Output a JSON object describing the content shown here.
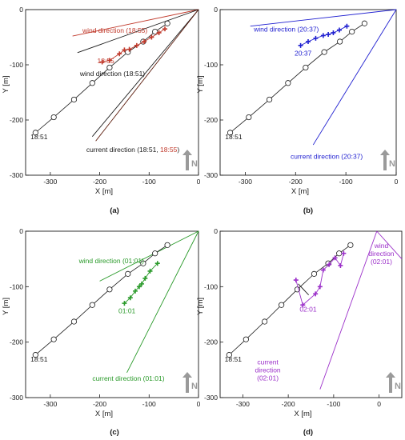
{
  "figure": {
    "xlabel": "X [m]",
    "ylabel": "Y [m]",
    "xticks": [
      -300,
      -200,
      -100,
      0
    ],
    "yticks": [
      0,
      -100,
      -200,
      -300
    ],
    "north_symbol": "N"
  },
  "colors": {
    "black": "#1a1a1a",
    "red": "#c0392b",
    "dark_red": "#5a1a0a",
    "blue": "#1f1fd0",
    "green": "#2a9a2a",
    "purple": "#9b2fc9",
    "north_arrow": "#9a9a9a"
  },
  "icons": {
    "north_arrow": "north-arrow-icon"
  },
  "chart_data": [
    {
      "type": "scatter",
      "panel_label": "(a)",
      "xlim": [
        -350,
        0
      ],
      "ylim": [
        -300,
        0
      ],
      "grid": false,
      "series": [
        {
          "name": "",
          "color": "black",
          "marker": "circle",
          "x": [
            -330,
            -293,
            -252,
            -215,
            -180,
            -143,
            -112,
            -88,
            -63
          ],
          "y": [
            -223,
            -195,
            -163,
            -133,
            -105,
            -77,
            -58,
            -40,
            -25
          ]
        },
        {
          "name": "",
          "color": "red",
          "marker": "plus",
          "x": [
            -195,
            -180,
            -160,
            -150,
            -140,
            -125,
            -110,
            -95,
            -80,
            -68
          ],
          "y": [
            -95,
            -92,
            -80,
            -73,
            -72,
            -65,
            -58,
            -50,
            -42,
            -35
          ]
        }
      ],
      "lines": [
        {
          "color": "red",
          "x": [
            -255,
            0
          ],
          "y": [
            -48,
            0
          ]
        },
        {
          "color": "black",
          "x": [
            -245,
            0
          ],
          "y": [
            -78,
            0
          ]
        },
        {
          "color": "black",
          "x": [
            -215,
            0
          ],
          "y": [
            -230,
            0
          ]
        },
        {
          "color": "dark_red",
          "x": [
            -208,
            0
          ],
          "y": [
            -238,
            0
          ]
        }
      ],
      "annotations": [
        {
          "text": "wind direction (18:55)",
          "color": "red",
          "x": -235,
          "y": -42
        },
        {
          "text": "18:55",
          "color": "red",
          "x": -205,
          "y": -97
        },
        {
          "text": "wind direction (18:51)",
          "color": "black",
          "x": -240,
          "y": -120
        },
        {
          "text": "18:51",
          "color": "black",
          "x": -340,
          "y": -235
        },
        {
          "text": "current direction (18:51, ",
          "text2": "18:55",
          "text3": ")",
          "color": "black",
          "color2": "red",
          "x": -227,
          "y": -258
        }
      ]
    },
    {
      "type": "scatter",
      "panel_label": "(b)",
      "xlim": [
        -350,
        0
      ],
      "ylim": [
        -300,
        0
      ],
      "grid": false,
      "series": [
        {
          "name": "",
          "color": "black",
          "marker": "circle",
          "x": [
            -330,
            -293,
            -252,
            -215,
            -180,
            -143,
            -112,
            -88,
            -63
          ],
          "y": [
            -223,
            -195,
            -163,
            -133,
            -105,
            -77,
            -58,
            -40,
            -25
          ]
        },
        {
          "name": "",
          "color": "blue",
          "marker": "plus",
          "x": [
            -190,
            -175,
            -160,
            -145,
            -135,
            -125,
            -113,
            -98
          ],
          "y": [
            -65,
            -58,
            -52,
            -47,
            -45,
            -42,
            -37,
            -30
          ]
        }
      ],
      "lines": [
        {
          "color": "blue",
          "x": [
            -290,
            0
          ],
          "y": [
            -30,
            0
          ]
        },
        {
          "color": "blue",
          "x": [
            -165,
            0
          ],
          "y": [
            -245,
            0
          ]
        }
      ],
      "annotations": [
        {
          "text": "wind direction (20:37)",
          "color": "blue",
          "x": -283,
          "y": -40
        },
        {
          "text": "20:37",
          "color": "blue",
          "x": -202,
          "y": -83
        },
        {
          "text": "18:51",
          "color": "black",
          "x": -340,
          "y": -235
        },
        {
          "text": "current direction (20:37)",
          "color": "blue",
          "x": -210,
          "y": -270
        }
      ]
    },
    {
      "type": "scatter",
      "panel_label": "(c)",
      "xlim": [
        -350,
        0
      ],
      "ylim": [
        -300,
        0
      ],
      "grid": false,
      "series": [
        {
          "name": "",
          "color": "black",
          "marker": "circle",
          "x": [
            -330,
            -293,
            -252,
            -215,
            -180,
            -143,
            -112,
            -88,
            -63
          ],
          "y": [
            -223,
            -195,
            -163,
            -133,
            -105,
            -77,
            -58,
            -40,
            -25
          ]
        },
        {
          "name": "",
          "color": "green",
          "marker": "plus",
          "x": [
            -150,
            -138,
            -128,
            -120,
            -115,
            -108,
            -98,
            -83
          ],
          "y": [
            -130,
            -120,
            -108,
            -100,
            -95,
            -85,
            -72,
            -58
          ]
        }
      ],
      "lines": [
        {
          "color": "green",
          "x": [
            -200,
            0
          ],
          "y": [
            -90,
            0
          ]
        },
        {
          "color": "green",
          "x": [
            -145,
            0
          ],
          "y": [
            -255,
            0
          ]
        }
      ],
      "annotations": [
        {
          "text": "wind direction (01:01)",
          "color": "green",
          "x": -242,
          "y": -58
        },
        {
          "text": "01:01",
          "color": "green",
          "x": -162,
          "y": -148
        },
        {
          "text": "18:51",
          "color": "black",
          "x": -340,
          "y": -235
        },
        {
          "text": "current direction (01:01)",
          "color": "green",
          "x": -215,
          "y": -270
        }
      ]
    },
    {
      "type": "scatter",
      "panel_label": "(d)",
      "xlim": [
        -350,
        50
      ],
      "ylim": [
        -300,
        0
      ],
      "grid": false,
      "series": [
        {
          "name": "",
          "color": "black",
          "marker": "circle",
          "x": [
            -330,
            -293,
            -252,
            -215,
            -180,
            -143,
            -112,
            -88,
            -63
          ],
          "y": [
            -223,
            -195,
            -163,
            -133,
            -105,
            -77,
            -58,
            -40,
            -25
          ]
        },
        {
          "name": "",
          "color": "purple",
          "marker": "plus",
          "x": [
            -183,
            -168,
            -140,
            -130,
            -123,
            -110,
            -97,
            -85,
            -78
          ],
          "y": [
            -88,
            -133,
            -113,
            -100,
            -70,
            -60,
            -48,
            -62,
            -40
          ]
        }
      ],
      "lines": [
        {
          "color": "purple",
          "x": [
            -130,
            -5
          ],
          "y": [
            -285,
            0
          ]
        },
        {
          "color": "purple",
          "x": [
            -5,
            50
          ],
          "y": [
            0,
            -50
          ]
        },
        {
          "color": "black",
          "x": [
            -178,
            -155
          ],
          "y": [
            -95,
            -115
          ]
        }
      ],
      "annotations": [
        {
          "text": "wind",
          "text_line2": "direction",
          "text_line3": "(02:01)",
          "color": "purple",
          "x": 5,
          "y": -30
        },
        {
          "text": "02:01",
          "color": "purple",
          "x": -175,
          "y": -145
        },
        {
          "text": "18:51",
          "color": "black",
          "x": -340,
          "y": -235
        },
        {
          "text": "current",
          "text_line2": "direction",
          "text_line3": "(02:01)",
          "color": "purple",
          "x": -245,
          "y": -240
        }
      ]
    }
  ]
}
